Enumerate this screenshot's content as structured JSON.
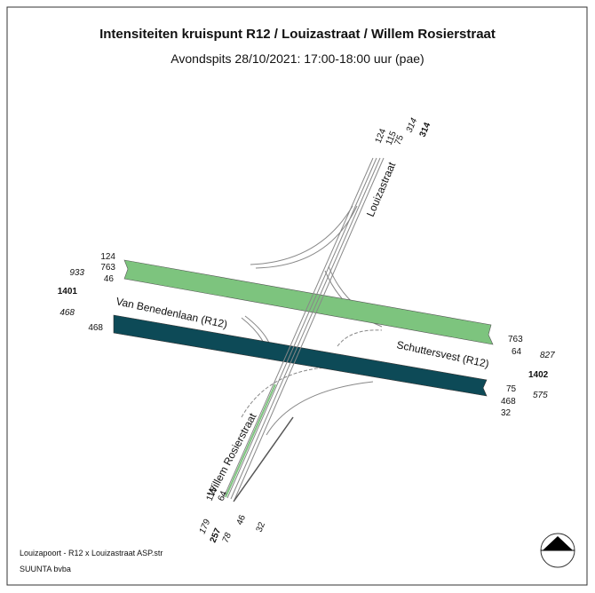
{
  "title": "Intensiteiten kruispunt R12 / Louizastraat / Willem Rosierstraat",
  "subtitle": "Avondspits 28/10/2021: 17:00-18:00 uur (pae)",
  "roads": {
    "north": "Louizastraat",
    "west": "Van Benedenlaan (R12)",
    "east": "Schuttersvest (R12)",
    "south": "Willem Rosierstraat"
  },
  "north": {
    "turns": [
      124,
      115,
      75
    ],
    "in": 314,
    "total": 314
  },
  "west": {
    "turns": [
      124,
      763,
      46
    ],
    "in": 933,
    "total": 1401,
    "out": 468,
    "band": 468
  },
  "east": {
    "out_turns": [
      763,
      64
    ],
    "out": 827,
    "total": 1402,
    "in_turns": [
      75,
      468,
      32
    ],
    "in": 575
  },
  "south": {
    "in_turns": [
      115,
      64
    ],
    "in": 179,
    "total": 257,
    "out": 78,
    "out_turns": [
      46,
      32
    ]
  },
  "footer": [
    "Louizapoort - R12 x Louizastraat ASP.str",
    "SUUNTA bvba"
  ]
}
